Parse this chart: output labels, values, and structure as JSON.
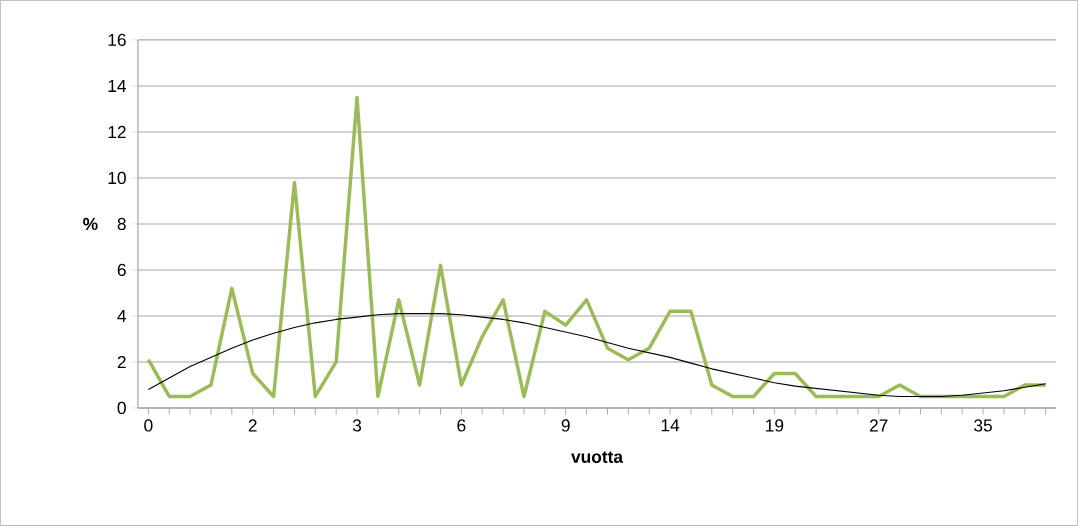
{
  "chart_data": {
    "type": "line",
    "xlabel": "vuotta",
    "ylabel": "%",
    "categories": [
      "0",
      null,
      null,
      null,
      null,
      "2",
      null,
      null,
      null,
      null,
      "3",
      null,
      null,
      null,
      null,
      "6",
      null,
      null,
      null,
      null,
      "9",
      null,
      null,
      null,
      null,
      "14",
      null,
      null,
      null,
      null,
      "19",
      null,
      null,
      null,
      null,
      "27",
      null,
      null,
      null,
      null,
      "35",
      null,
      null,
      null
    ],
    "series": [
      {
        "color": "#9bbb59",
        "values": [
          2.1,
          0.5,
          0.5,
          1.0,
          5.2,
          1.5,
          0.5,
          9.8,
          0.5,
          2.0,
          13.5,
          0.5,
          4.7,
          1.0,
          6.2,
          1.0,
          3.1,
          4.7,
          0.5,
          4.2,
          3.6,
          4.7,
          2.6,
          2.1,
          2.6,
          4.2,
          4.2,
          1.0,
          0.5,
          0.5,
          1.5,
          1.5,
          0.5,
          0.5,
          0.5,
          0.5,
          1.0,
          0.5,
          0.5,
          0.5,
          0.5,
          0.5,
          1.0,
          1.0
        ]
      },
      {
        "color": "#000000",
        "values": [
          0.8,
          1.3,
          1.8,
          2.2,
          2.6,
          2.95,
          3.25,
          3.5,
          3.7,
          3.85,
          3.95,
          4.05,
          4.1,
          4.1,
          4.1,
          4.05,
          3.95,
          3.85,
          3.7,
          3.5,
          3.3,
          3.1,
          2.85,
          2.6,
          2.4,
          2.2,
          1.95,
          1.7,
          1.5,
          1.3,
          1.1,
          0.95,
          0.85,
          0.75,
          0.65,
          0.55,
          0.5,
          0.5,
          0.5,
          0.55,
          0.65,
          0.75,
          0.9,
          1.05
        ]
      }
    ],
    "ylim": [
      0,
      16
    ],
    "yticks": [
      0,
      2,
      4,
      6,
      8,
      10,
      12,
      14,
      16
    ],
    "grid": "y",
    "marker": "none",
    "line_style": "solid"
  }
}
